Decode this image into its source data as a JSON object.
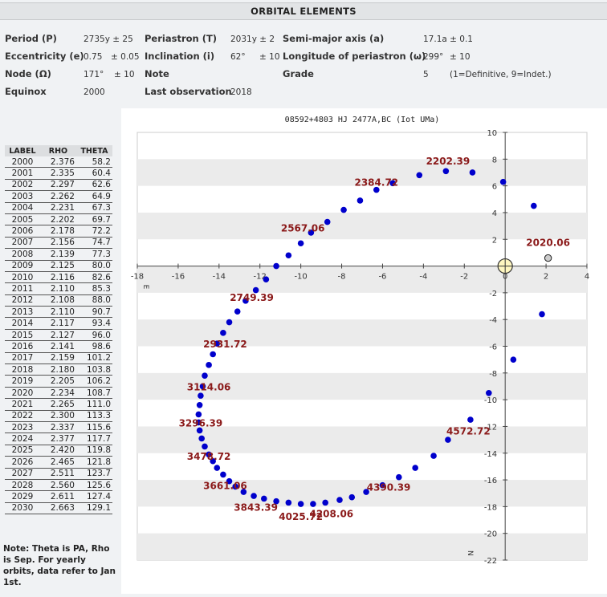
{
  "page_title": "ORBITAL ELEMENTS",
  "elements": {
    "period_label": "Period (P)",
    "period_value": "2735y ± 25",
    "periastron_label": "Periastron (T)",
    "periastron_value": "2031y ± 2",
    "semimajor_label": "Semi-major axis (a)",
    "semimajor_value": "17.1a ± 0.1",
    "ecc_label": "Eccentricity (e)",
    "ecc_value": "0.75",
    "ecc_err": "± 0.05",
    "incl_label": "Inclination (i)",
    "incl_value": "62°",
    "incl_err": "± 10",
    "omega_label": "Longitude of periastron (ω)",
    "omega_value": "299°",
    "omega_err": "± 10",
    "node_label": "Node (Ω)",
    "node_value": "171°",
    "node_err": "± 10",
    "note_label": "Note",
    "grade_label": "Grade",
    "grade_value": "5",
    "grade_desc": "(1=Definitive, 9=Indet.)",
    "equinox_label": "Equinox",
    "equinox_value": "2000",
    "lastobs_label": "Last observation",
    "lastobs_value": "2018"
  },
  "table": {
    "headers": [
      "LABEL",
      "RHO",
      "THETA"
    ],
    "rows": [
      [
        "2000",
        "2.376",
        "58.2"
      ],
      [
        "2001",
        "2.335",
        "60.4"
      ],
      [
        "2002",
        "2.297",
        "62.6"
      ],
      [
        "2003",
        "2.262",
        "64.9"
      ],
      [
        "2004",
        "2.231",
        "67.3"
      ],
      [
        "2005",
        "2.202",
        "69.7"
      ],
      [
        "2006",
        "2.178",
        "72.2"
      ],
      [
        "2007",
        "2.156",
        "74.7"
      ],
      [
        "2008",
        "2.139",
        "77.3"
      ],
      [
        "2009",
        "2.125",
        "80.0"
      ],
      [
        "2010",
        "2.116",
        "82.6"
      ],
      [
        "2011",
        "2.110",
        "85.3"
      ],
      [
        "2012",
        "2.108",
        "88.0"
      ],
      [
        "2013",
        "2.110",
        "90.7"
      ],
      [
        "2014",
        "2.117",
        "93.4"
      ],
      [
        "2015",
        "2.127",
        "96.0"
      ],
      [
        "2016",
        "2.141",
        "98.6"
      ],
      [
        "2017",
        "2.159",
        "101.2"
      ],
      [
        "2018",
        "2.180",
        "103.8"
      ],
      [
        "2019",
        "2.205",
        "106.2"
      ],
      [
        "2020",
        "2.234",
        "108.7"
      ],
      [
        "2021",
        "2.265",
        "111.0"
      ],
      [
        "2022",
        "2.300",
        "113.3"
      ],
      [
        "2023",
        "2.337",
        "115.6"
      ],
      [
        "2024",
        "2.377",
        "117.7"
      ],
      [
        "2025",
        "2.420",
        "119.8"
      ],
      [
        "2026",
        "2.465",
        "121.8"
      ],
      [
        "2027",
        "2.511",
        "123.7"
      ],
      [
        "2028",
        "2.560",
        "125.6"
      ],
      [
        "2029",
        "2.611",
        "127.4"
      ],
      [
        "2030",
        "2.663",
        "129.1"
      ]
    ]
  },
  "note_text": "Note: Theta is PA, Rho is Sep. For yearly orbits, data refer to Jan 1st.",
  "chart_data": {
    "type": "scatter",
    "title": "08592+4803 HJ 2477A,BC (Iot UMa)",
    "xlim": [
      -18,
      4
    ],
    "ylim": [
      -22,
      10
    ],
    "xticks": [
      -18,
      -16,
      -14,
      -12,
      -10,
      -8,
      -6,
      -4,
      -2,
      0,
      2,
      4
    ],
    "yticks": [
      10,
      8,
      6,
      4,
      2,
      -2,
      -4,
      -6,
      -8,
      -10,
      -12,
      -14,
      -16,
      -18,
      -20,
      -22
    ],
    "x_axis_label": "E",
    "y_axis_label": "N",
    "grid": "horizontal alternating bands",
    "point_color": "#0000cc",
    "label_color": "#8b1a1a",
    "primary_star": {
      "x": 0,
      "y": 0
    },
    "current_position": {
      "x": 2.1,
      "y": 0.6
    },
    "orbit_points": [
      [
        -0.1,
        6.3
      ],
      [
        -1.6,
        7.0
      ],
      [
        -2.9,
        7.1
      ],
      [
        -4.2,
        6.8
      ],
      [
        -5.5,
        6.2
      ],
      [
        -6.3,
        5.7
      ],
      [
        -7.1,
        4.9
      ],
      [
        -7.9,
        4.2
      ],
      [
        -8.7,
        3.3
      ],
      [
        -9.5,
        2.5
      ],
      [
        -10.0,
        1.7
      ],
      [
        -10.6,
        0.8
      ],
      [
        -11.2,
        0.0
      ],
      [
        -11.7,
        -1.0
      ],
      [
        -12.2,
        -1.8
      ],
      [
        -12.7,
        -2.6
      ],
      [
        -13.1,
        -3.4
      ],
      [
        -13.5,
        -4.2
      ],
      [
        -13.8,
        -5.0
      ],
      [
        -14.1,
        -5.8
      ],
      [
        -14.3,
        -6.6
      ],
      [
        -14.5,
        -7.4
      ],
      [
        -14.7,
        -8.2
      ],
      [
        -14.8,
        -9.0
      ],
      [
        -14.9,
        -9.7
      ],
      [
        -14.95,
        -10.4
      ],
      [
        -15.0,
        -11.1
      ],
      [
        -15.0,
        -11.7
      ],
      [
        -14.95,
        -12.3
      ],
      [
        -14.85,
        -12.9
      ],
      [
        -14.7,
        -13.5
      ],
      [
        -14.5,
        -14.1
      ],
      [
        -14.3,
        -14.6
      ],
      [
        -14.1,
        -15.1
      ],
      [
        -13.8,
        -15.6
      ],
      [
        -13.5,
        -16.1
      ],
      [
        -13.2,
        -16.5
      ],
      [
        -12.8,
        -16.9
      ],
      [
        -12.3,
        -17.2
      ],
      [
        -11.8,
        -17.4
      ],
      [
        -11.2,
        -17.6
      ],
      [
        -10.6,
        -17.7
      ],
      [
        -10.0,
        -17.8
      ],
      [
        -9.4,
        -17.8
      ],
      [
        -8.8,
        -17.7
      ],
      [
        -8.1,
        -17.5
      ],
      [
        -7.5,
        -17.3
      ],
      [
        -6.8,
        -16.9
      ],
      [
        -6.0,
        -16.4
      ],
      [
        -5.2,
        -15.8
      ],
      [
        -4.4,
        -15.1
      ],
      [
        -3.5,
        -14.2
      ],
      [
        -2.8,
        -13.0
      ],
      [
        -1.7,
        -11.5
      ],
      [
        -0.8,
        -9.5
      ],
      [
        0.4,
        -7.0
      ],
      [
        1.8,
        -3.6
      ],
      [
        1.4,
        4.5
      ]
    ],
    "epoch_labels": [
      {
        "text": "2202.39",
        "x": -2.8,
        "y": 7.6
      },
      {
        "text": "2384.72",
        "x": -6.3,
        "y": 6.0
      },
      {
        "text": "2567.06",
        "x": -9.9,
        "y": 2.6
      },
      {
        "text": "2749.39",
        "x": -12.4,
        "y": -2.6
      },
      {
        "text": "2931.72",
        "x": -13.7,
        "y": -6.1
      },
      {
        "text": "3114.06",
        "x": -14.5,
        "y": -9.3
      },
      {
        "text": "3296.39",
        "x": -14.9,
        "y": -12.0
      },
      {
        "text": "3478.72",
        "x": -14.5,
        "y": -14.5
      },
      {
        "text": "3661.06",
        "x": -13.7,
        "y": -16.7
      },
      {
        "text": "3843.39",
        "x": -12.2,
        "y": -18.3
      },
      {
        "text": "4025.72",
        "x": -10.0,
        "y": -19.0
      },
      {
        "text": "4208.06",
        "x": -8.5,
        "y": -18.8
      },
      {
        "text": "4390.39",
        "x": -5.7,
        "y": -16.8
      },
      {
        "text": "4572.72",
        "x": -1.8,
        "y": -12.6
      },
      {
        "text": "2020.06",
        "x": 2.1,
        "y": 1.5
      }
    ]
  }
}
